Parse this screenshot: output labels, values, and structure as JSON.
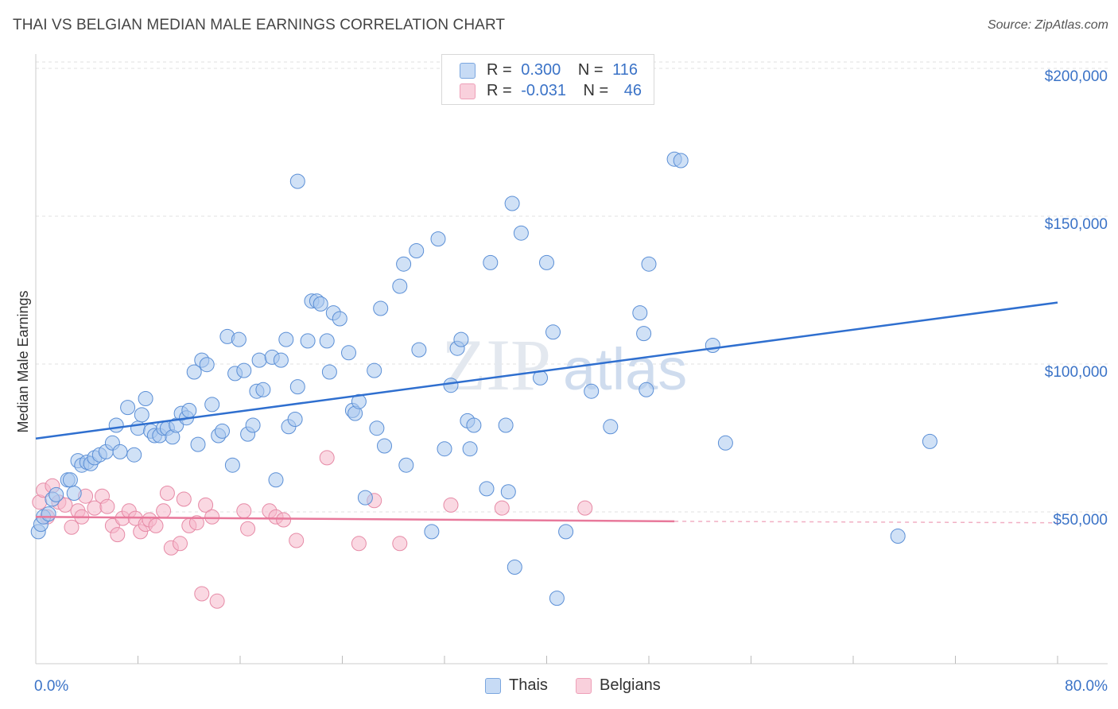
{
  "header": {
    "title": "THAI VS BELGIAN MEDIAN MALE EARNINGS CORRELATION CHART",
    "source": "Source: ZipAtlas.com"
  },
  "watermark": {
    "zip": "ZIP",
    "atlas": "atlas"
  },
  "legend": {
    "rows": [
      {
        "r_label": "R =",
        "r_value": "0.300",
        "n_label": "N =",
        "n_value": "116",
        "color": "#a9c8ee"
      },
      {
        "r_label": "R =",
        "r_value": "-0.031",
        "n_label": "N =",
        "n_value": "46",
        "color": "#f5b8cb"
      }
    ]
  },
  "bottom_legend": {
    "series1": "Thais",
    "series2": "Belgians"
  },
  "chart_data": {
    "type": "scatter",
    "ylabel": "Median Male Earnings",
    "x_min_label": "0.0%",
    "x_max_label": "80.0%",
    "xlim": [
      0,
      80
    ],
    "ylim": [
      5000,
      210000
    ],
    "yticks": [
      {
        "value": 50000,
        "label": "$50,000"
      },
      {
        "value": 100000,
        "label": "$100,000"
      },
      {
        "value": 150000,
        "label": "$150,000"
      },
      {
        "value": 200000,
        "label": "$200,000"
      }
    ],
    "colors": {
      "thais_fill": "#a9c8ee",
      "thais_stroke": "#5b8fd6",
      "thais_line": "#2f6fcf",
      "belgians_fill": "#f5b8cb",
      "belgians_stroke": "#e68aa6",
      "belgians_line": "#e8799b",
      "axis_text": "#3b73c7"
    },
    "series": [
      {
        "name": "Thais",
        "trend": {
          "x": [
            0,
            80
          ],
          "y": [
            77500,
            123500
          ]
        },
        "points": [
          [
            0.2,
            46000
          ],
          [
            0.4,
            48500
          ],
          [
            0.6,
            51000
          ],
          [
            1.0,
            52000
          ],
          [
            1.3,
            57000
          ],
          [
            1.6,
            58500
          ],
          [
            2.5,
            63500
          ],
          [
            2.7,
            63500
          ],
          [
            3.0,
            59000
          ],
          [
            3.3,
            70000
          ],
          [
            3.6,
            68500
          ],
          [
            4.0,
            69500
          ],
          [
            4.3,
            69000
          ],
          [
            4.6,
            71000
          ],
          [
            5.0,
            72000
          ],
          [
            5.5,
            73000
          ],
          [
            6.0,
            76000
          ],
          [
            6.3,
            82000
          ],
          [
            6.6,
            73000
          ],
          [
            7.2,
            88000
          ],
          [
            7.7,
            72000
          ],
          [
            8.0,
            81000
          ],
          [
            8.3,
            85500
          ],
          [
            8.6,
            91000
          ],
          [
            9.0,
            80000
          ],
          [
            9.3,
            78500
          ],
          [
            9.7,
            78500
          ],
          [
            10.0,
            81000
          ],
          [
            10.3,
            81000
          ],
          [
            10.7,
            78000
          ],
          [
            11.0,
            82000
          ],
          [
            11.4,
            86000
          ],
          [
            11.8,
            84500
          ],
          [
            12.0,
            87000
          ],
          [
            12.4,
            100000
          ],
          [
            12.7,
            75500
          ],
          [
            13.0,
            104000
          ],
          [
            13.4,
            102500
          ],
          [
            13.8,
            89000
          ],
          [
            14.3,
            78500
          ],
          [
            14.6,
            80000
          ],
          [
            15.0,
            112000
          ],
          [
            15.4,
            68500
          ],
          [
            15.6,
            99500
          ],
          [
            15.9,
            111000
          ],
          [
            16.3,
            100500
          ],
          [
            16.6,
            79000
          ],
          [
            17.0,
            82000
          ],
          [
            17.3,
            93500
          ],
          [
            17.5,
            104000
          ],
          [
            17.8,
            94000
          ],
          [
            18.5,
            105000
          ],
          [
            18.8,
            63500
          ],
          [
            19.2,
            104000
          ],
          [
            19.6,
            111000
          ],
          [
            19.8,
            81500
          ],
          [
            20.3,
            84000
          ],
          [
            20.5,
            95000
          ],
          [
            21.3,
            110500
          ],
          [
            21.6,
            124000
          ],
          [
            22.0,
            124000
          ],
          [
            22.3,
            123000
          ],
          [
            22.8,
            110500
          ],
          [
            23.0,
            100000
          ],
          [
            23.3,
            120000
          ],
          [
            23.8,
            118000
          ],
          [
            24.5,
            106500
          ],
          [
            24.8,
            87000
          ],
          [
            25.0,
            86000
          ],
          [
            25.3,
            90000
          ],
          [
            25.8,
            57500
          ],
          [
            26.5,
            100500
          ],
          [
            26.7,
            81000
          ],
          [
            27.0,
            121500
          ],
          [
            27.3,
            75000
          ],
          [
            28.5,
            129000
          ],
          [
            28.8,
            136500
          ],
          [
            29.0,
            68500
          ],
          [
            29.8,
            141000
          ],
          [
            30.0,
            107500
          ],
          [
            31.0,
            46000
          ],
          [
            31.5,
            145000
          ],
          [
            32.0,
            74000
          ],
          [
            32.5,
            95500
          ],
          [
            33.0,
            108000
          ],
          [
            33.3,
            111000
          ],
          [
            33.8,
            83500
          ],
          [
            34.3,
            82000
          ],
          [
            34.0,
            74000
          ],
          [
            35.3,
            60500
          ],
          [
            35.6,
            137000
          ],
          [
            36.8,
            82000
          ],
          [
            37.0,
            59500
          ],
          [
            37.3,
            157000
          ],
          [
            37.5,
            34000
          ],
          [
            38.0,
            147000
          ],
          [
            39.5,
            98000
          ],
          [
            40.0,
            137000
          ],
          [
            40.5,
            113500
          ],
          [
            40.8,
            23500
          ],
          [
            41.5,
            46000
          ],
          [
            43.5,
            93500
          ],
          [
            45.0,
            81500
          ],
          [
            47.3,
            120000
          ],
          [
            47.6,
            113000
          ],
          [
            47.8,
            94000
          ],
          [
            48.0,
            136500
          ],
          [
            50.0,
            172000
          ],
          [
            50.5,
            171500
          ],
          [
            53.0,
            109000
          ],
          [
            54.0,
            76000
          ],
          [
            67.5,
            44500
          ],
          [
            70.0,
            76500
          ],
          [
            20.5,
            164500
          ]
        ]
      },
      {
        "name": "Belgians",
        "trend": {
          "x": [
            0,
            50
          ],
          "y": [
            51000,
            49500
          ]
        },
        "trend_dashed": {
          "x": [
            50,
            80
          ],
          "y": [
            49500,
            49000
          ]
        },
        "points": [
          [
            0.3,
            56000
          ],
          [
            0.6,
            60000
          ],
          [
            0.9,
            51000
          ],
          [
            1.3,
            61500
          ],
          [
            1.8,
            56000
          ],
          [
            2.3,
            55000
          ],
          [
            2.8,
            47500
          ],
          [
            3.3,
            53000
          ],
          [
            3.6,
            51000
          ],
          [
            3.9,
            58000
          ],
          [
            4.6,
            54000
          ],
          [
            5.2,
            58000
          ],
          [
            5.6,
            54500
          ],
          [
            6.0,
            48000
          ],
          [
            6.4,
            45000
          ],
          [
            6.8,
            50500
          ],
          [
            7.3,
            53000
          ],
          [
            7.8,
            50500
          ],
          [
            8.2,
            46000
          ],
          [
            8.6,
            48500
          ],
          [
            8.9,
            50000
          ],
          [
            9.4,
            48000
          ],
          [
            10.0,
            53000
          ],
          [
            10.3,
            59000
          ],
          [
            10.6,
            40500
          ],
          [
            11.3,
            42000
          ],
          [
            11.6,
            57000
          ],
          [
            12.0,
            48000
          ],
          [
            12.6,
            49000
          ],
          [
            13.0,
            25000
          ],
          [
            13.3,
            55000
          ],
          [
            13.8,
            51000
          ],
          [
            14.2,
            22500
          ],
          [
            16.3,
            53000
          ],
          [
            16.6,
            47000
          ],
          [
            18.3,
            53000
          ],
          [
            18.8,
            51000
          ],
          [
            19.4,
            50000
          ],
          [
            20.4,
            43000
          ],
          [
            22.8,
            71000
          ],
          [
            25.3,
            42000
          ],
          [
            26.5,
            56500
          ],
          [
            28.5,
            42000
          ],
          [
            32.5,
            55000
          ],
          [
            36.5,
            54000
          ],
          [
            43.0,
            54000
          ]
        ]
      }
    ]
  }
}
